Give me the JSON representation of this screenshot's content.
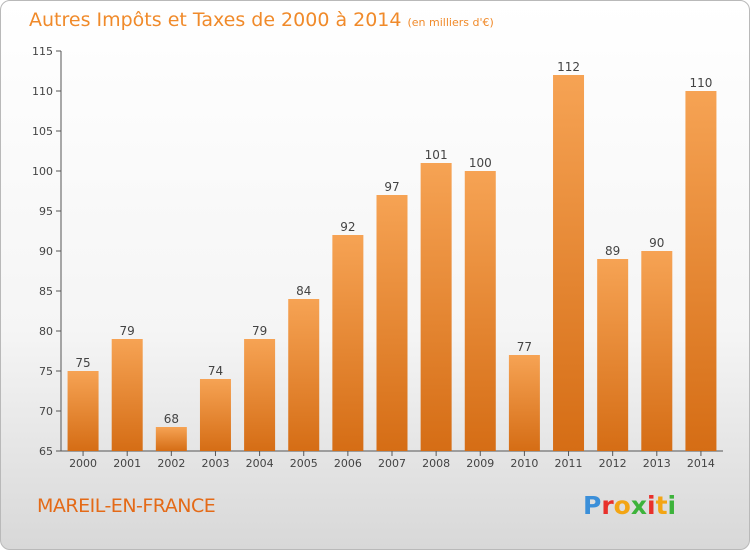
{
  "title": "Autres Impôts et Taxes de 2000 à 2014",
  "subtitle": "(en milliers d'€)",
  "town": "MAREIL-EN-FRANCE",
  "logo": {
    "letters": [
      "P",
      "r",
      "o",
      "x",
      "i",
      "t",
      "i"
    ],
    "colors": [
      "#3b8fd9",
      "#e8302b",
      "#f3a514",
      "#3db33b",
      "#e8302b",
      "#f3a514",
      "#3db33b"
    ]
  },
  "colors": {
    "bar_top": "#f6a354",
    "bar_bottom": "#d56d15",
    "accent": "#f08a2a"
  },
  "chart_data": {
    "type": "bar",
    "categories": [
      "2000",
      "2001",
      "2002",
      "2003",
      "2004",
      "2005",
      "2006",
      "2007",
      "2008",
      "2009",
      "2010",
      "2011",
      "2012",
      "2013",
      "2014"
    ],
    "values": [
      75,
      79,
      68,
      74,
      79,
      84,
      92,
      97,
      101,
      100,
      77,
      112,
      89,
      90,
      110
    ],
    "title": "Autres Impôts et Taxes de 2000 à 2014",
    "xlabel": "",
    "ylabel": "",
    "ylim": [
      65,
      115
    ],
    "yticks": [
      65,
      70,
      75,
      80,
      85,
      90,
      95,
      100,
      105,
      110,
      115
    ],
    "grid": false,
    "legend": "none"
  }
}
